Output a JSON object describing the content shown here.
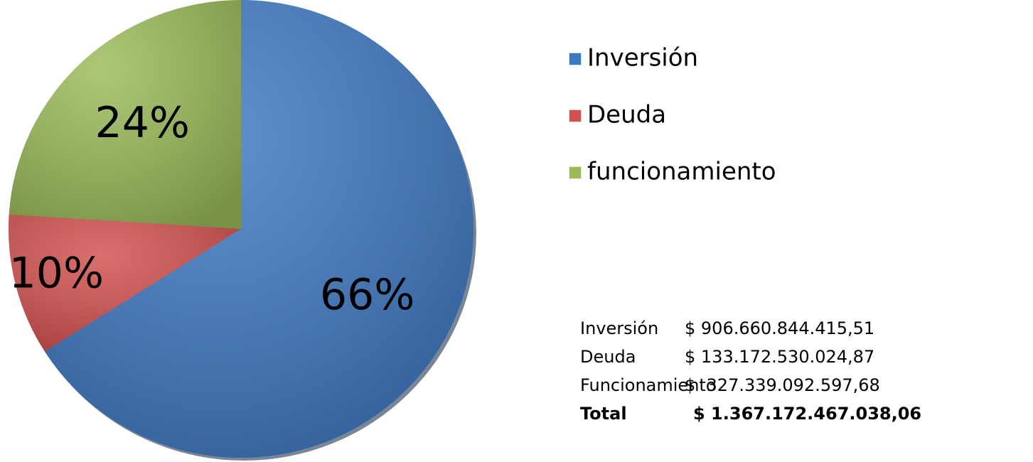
{
  "chart_data": {
    "type": "pie",
    "categories": [
      "Inversión",
      "Deuda",
      "funcionamiento"
    ],
    "values": [
      66,
      10,
      24
    ],
    "value_labels": [
      "66%",
      "10%",
      "24%"
    ],
    "colors": [
      "#3d78c2",
      "#d2504d",
      "#9bbb59"
    ],
    "legend": "right"
  },
  "table": {
    "rows": [
      [
        "Inversión",
        "$ 906.660.844.415,51"
      ],
      [
        "Deuda",
        "$ 133.172.530.024,87"
      ],
      [
        "Funcionamiento",
        "$  327.339.092.597,68"
      ],
      [
        "Total",
        "$ 1.367.172.467.038,06"
      ]
    ]
  }
}
